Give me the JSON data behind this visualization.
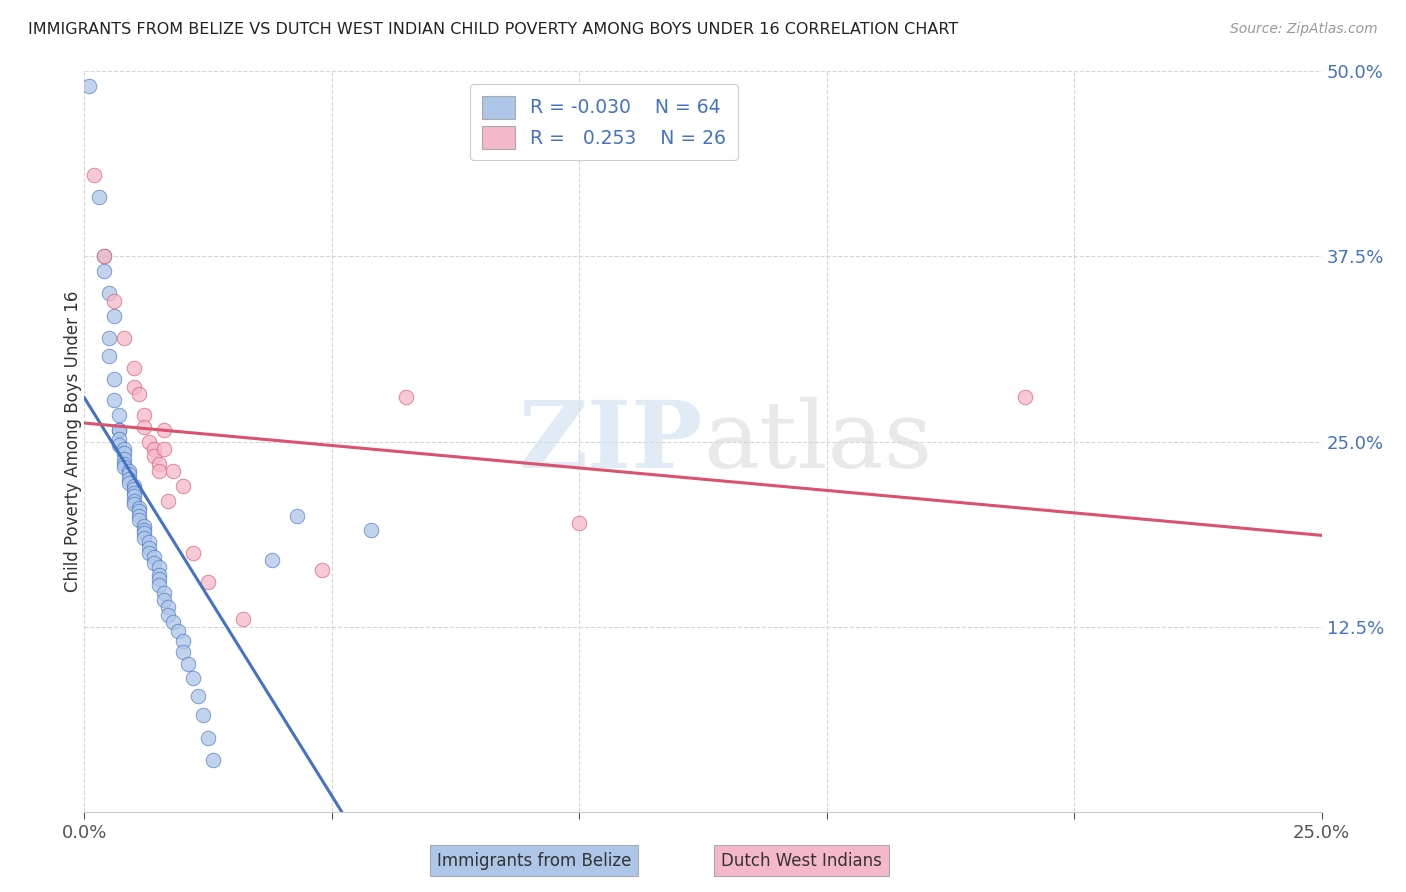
{
  "title": "IMMIGRANTS FROM BELIZE VS DUTCH WEST INDIAN CHILD POVERTY AMONG BOYS UNDER 16 CORRELATION CHART",
  "source": "Source: ZipAtlas.com",
  "ylabel": "Child Poverty Among Boys Under 16",
  "xlim": [
    0.0,
    0.25
  ],
  "ylim": [
    0.0,
    0.5
  ],
  "xticks": [
    0.0,
    0.05,
    0.1,
    0.15,
    0.2,
    0.25
  ],
  "yticks": [
    0.0,
    0.125,
    0.25,
    0.375,
    0.5
  ],
  "blue_r": -0.03,
  "blue_n": 64,
  "pink_r": 0.253,
  "pink_n": 26,
  "blue_color": "#aec6e8",
  "pink_color": "#f4b8c8",
  "blue_line_color": "#4472c4",
  "pink_line_color": "#d9536f",
  "watermark_zip": "ZIP",
  "watermark_atlas": "atlas",
  "blue_points": [
    [
      0.001,
      0.49
    ],
    [
      0.003,
      0.415
    ],
    [
      0.004,
      0.375
    ],
    [
      0.004,
      0.365
    ],
    [
      0.005,
      0.35
    ],
    [
      0.005,
      0.32
    ],
    [
      0.005,
      0.308
    ],
    [
      0.006,
      0.335
    ],
    [
      0.006,
      0.292
    ],
    [
      0.006,
      0.278
    ],
    [
      0.007,
      0.268
    ],
    [
      0.007,
      0.258
    ],
    [
      0.007,
      0.258
    ],
    [
      0.007,
      0.252
    ],
    [
      0.007,
      0.248
    ],
    [
      0.008,
      0.245
    ],
    [
      0.008,
      0.242
    ],
    [
      0.008,
      0.238
    ],
    [
      0.008,
      0.235
    ],
    [
      0.008,
      0.233
    ],
    [
      0.009,
      0.23
    ],
    [
      0.009,
      0.228
    ],
    [
      0.009,
      0.225
    ],
    [
      0.009,
      0.222
    ],
    [
      0.01,
      0.22
    ],
    [
      0.01,
      0.218
    ],
    [
      0.01,
      0.215
    ],
    [
      0.01,
      0.213
    ],
    [
      0.01,
      0.21
    ],
    [
      0.01,
      0.208
    ],
    [
      0.011,
      0.205
    ],
    [
      0.011,
      0.203
    ],
    [
      0.011,
      0.2
    ],
    [
      0.011,
      0.197
    ],
    [
      0.012,
      0.193
    ],
    [
      0.012,
      0.19
    ],
    [
      0.012,
      0.188
    ],
    [
      0.012,
      0.185
    ],
    [
      0.013,
      0.182
    ],
    [
      0.013,
      0.178
    ],
    [
      0.013,
      0.175
    ],
    [
      0.014,
      0.172
    ],
    [
      0.014,
      0.168
    ],
    [
      0.015,
      0.165
    ],
    [
      0.015,
      0.16
    ],
    [
      0.015,
      0.157
    ],
    [
      0.015,
      0.153
    ],
    [
      0.016,
      0.148
    ],
    [
      0.016,
      0.143
    ],
    [
      0.017,
      0.138
    ],
    [
      0.017,
      0.133
    ],
    [
      0.018,
      0.128
    ],
    [
      0.019,
      0.122
    ],
    [
      0.02,
      0.115
    ],
    [
      0.02,
      0.108
    ],
    [
      0.021,
      0.1
    ],
    [
      0.022,
      0.09
    ],
    [
      0.023,
      0.078
    ],
    [
      0.024,
      0.065
    ],
    [
      0.025,
      0.05
    ],
    [
      0.026,
      0.035
    ],
    [
      0.038,
      0.17
    ],
    [
      0.043,
      0.2
    ],
    [
      0.058,
      0.19
    ]
  ],
  "pink_points": [
    [
      0.002,
      0.43
    ],
    [
      0.004,
      0.375
    ],
    [
      0.006,
      0.345
    ],
    [
      0.008,
      0.32
    ],
    [
      0.01,
      0.3
    ],
    [
      0.01,
      0.287
    ],
    [
      0.011,
      0.282
    ],
    [
      0.012,
      0.268
    ],
    [
      0.012,
      0.26
    ],
    [
      0.013,
      0.25
    ],
    [
      0.014,
      0.245
    ],
    [
      0.014,
      0.24
    ],
    [
      0.015,
      0.235
    ],
    [
      0.015,
      0.23
    ],
    [
      0.016,
      0.245
    ],
    [
      0.016,
      0.258
    ],
    [
      0.017,
      0.21
    ],
    [
      0.018,
      0.23
    ],
    [
      0.02,
      0.22
    ],
    [
      0.022,
      0.175
    ],
    [
      0.025,
      0.155
    ],
    [
      0.032,
      0.13
    ],
    [
      0.048,
      0.163
    ],
    [
      0.065,
      0.28
    ],
    [
      0.1,
      0.195
    ],
    [
      0.19,
      0.28
    ]
  ]
}
